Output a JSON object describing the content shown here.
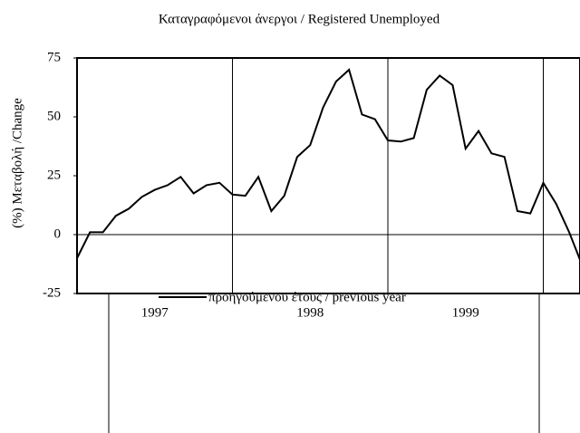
{
  "chart_data": {
    "type": "line",
    "title": "Καταγραφόμενοι άνεργοι / Registered Unemployed",
    "y_label": "(%) Μεταβολή /Change",
    "year_labels": [
      "1997",
      "1998",
      "1999"
    ],
    "series": [
      {
        "name": "προηγούμενου έτους / previous year",
        "color": "#000000",
        "values": [
          -10,
          1,
          1,
          8,
          11,
          16,
          19,
          21,
          24.5,
          17.5,
          21,
          22,
          17,
          16.5,
          24.5,
          10,
          16.5,
          33,
          38,
          54,
          65,
          70,
          51,
          49,
          40,
          39.5,
          41,
          61.5,
          67.5,
          63.5,
          36.5,
          44,
          34.5,
          33,
          10,
          9,
          22,
          13,
          1,
          -13
        ]
      }
    ],
    "ylim": [
      -25,
      75
    ],
    "yticks": [
      -25,
      0,
      25,
      50,
      75
    ]
  }
}
